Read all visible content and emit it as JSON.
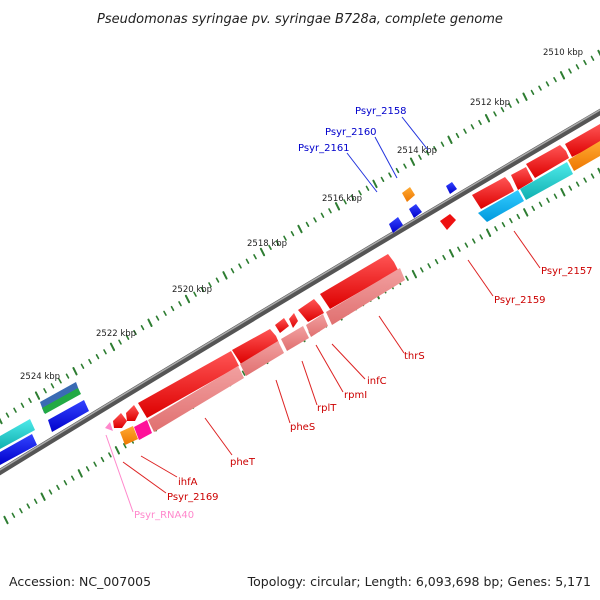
{
  "title": "Pseudomonas syringae pv. syringae B728a, complete genome",
  "footer": {
    "accession": "Accession: NC_007005",
    "topology": "Topology: circular; Length: 6,093,698 bp; Genes: 5,171"
  },
  "ruler": {
    "ticks": [
      {
        "label": "2510 kbp"
      },
      {
        "label": "2512 kbp"
      },
      {
        "label": "2514 kbp"
      },
      {
        "label": "2516 kbp"
      },
      {
        "label": "2518 kbp"
      },
      {
        "label": "2520 kbp"
      },
      {
        "label": "2522 kbp"
      },
      {
        "label": "2524 kbp"
      }
    ]
  },
  "genes": [
    {
      "name": "Psyr_2158",
      "color": "#0000cc"
    },
    {
      "name": "Psyr_2160",
      "color": "#0000cc"
    },
    {
      "name": "Psyr_2161",
      "color": "#0000cc"
    },
    {
      "name": "Psyr_2157",
      "color": "#cc0000"
    },
    {
      "name": "Psyr_2159",
      "color": "#cc0000"
    },
    {
      "name": "thrS",
      "color": "#cc0000"
    },
    {
      "name": "infC",
      "color": "#cc0000"
    },
    {
      "name": "rpmI",
      "color": "#cc0000"
    },
    {
      "name": "rplT",
      "color": "#cc0000"
    },
    {
      "name": "pheS",
      "color": "#cc0000"
    },
    {
      "name": "pheT",
      "color": "#cc0000"
    },
    {
      "name": "ihfA",
      "color": "#cc0000"
    },
    {
      "name": "Psyr_2169",
      "color": "#cc0000"
    },
    {
      "name": "Psyr_RNA40",
      "color": "#ff88cc"
    }
  ],
  "colors": {
    "forward_cds": "#ee0000",
    "reverse_cds": "#0000ee",
    "trna": "#ff88cc",
    "backbone": "#777777",
    "tick": "#2e7d32"
  }
}
